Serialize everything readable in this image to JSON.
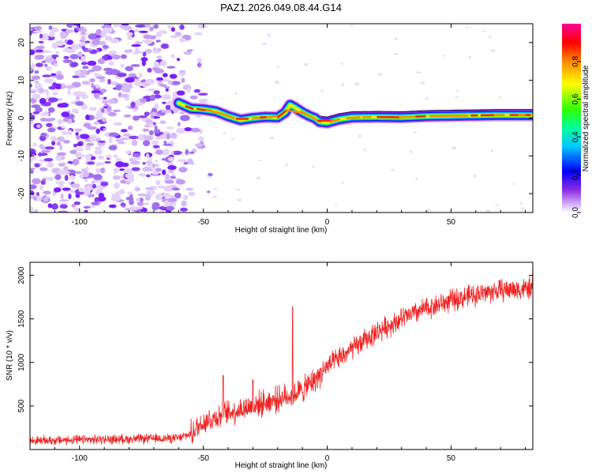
{
  "title": "PAZ1.2026.049.08.44.G14",
  "chart_data": [
    {
      "type": "heatmap",
      "name": "spectrogram",
      "xlabel": "Height of straight line (km)",
      "ylabel": "Frequency (Hz)",
      "xlim": [
        -120,
        83
      ],
      "ylim": [
        -25,
        25
      ],
      "xticks": [
        -100,
        -50,
        0,
        50
      ],
      "yticks": [
        -20,
        -10,
        0,
        10,
        20
      ],
      "colorbar": {
        "label": "Normalized spectral amplitude",
        "range": [
          0,
          1
        ],
        "ticks": [
          0.0,
          0.2,
          0.4,
          0.6,
          0.8
        ],
        "tick_labels": [
          "0.0",
          "0.2",
          "0.4",
          "0.6",
          "0.8"
        ],
        "colors": [
          "#ffffff",
          "#c9a6f5",
          "#7f00ff",
          "#0000ff",
          "#00c8ff",
          "#00ff80",
          "#80ff00",
          "#ffff00",
          "#ff8000",
          "#ff0000",
          "#ff00a0"
        ]
      },
      "noise_region_x": [
        -120,
        -55
      ],
      "ridge": {
        "x": [
          -60,
          -55,
          -50,
          -45,
          -40,
          -35,
          -30,
          -25,
          -20,
          -17,
          -15,
          -13,
          -10,
          -7,
          -5,
          -3,
          0,
          5,
          10,
          20,
          30,
          40,
          50,
          60,
          70,
          83
        ],
        "y": [
          4,
          2.5,
          2.3,
          1.8,
          0.5,
          -0.5,
          0,
          0.3,
          0.2,
          1.5,
          3.5,
          2.8,
          1.5,
          0.5,
          0,
          -1,
          -1.2,
          -0.3,
          0.2,
          0.3,
          0.2,
          0.5,
          0.6,
          0.7,
          0.8,
          0.8
        ]
      }
    },
    {
      "type": "line",
      "name": "snr",
      "xlabel": "Height of straight line (km)",
      "ylabel": "SNR (10 * v/v)",
      "xlim": [
        -120,
        83
      ],
      "ylim": [
        0,
        2150
      ],
      "xticks": [
        -100,
        -50,
        0,
        50
      ],
      "yticks": [
        500,
        1000,
        1500,
        2000
      ],
      "color": "#ee2222",
      "trend": {
        "x": [
          -120,
          -100,
          -80,
          -60,
          -55,
          -50,
          -40,
          -30,
          -20,
          -15,
          -10,
          -5,
          0,
          10,
          20,
          30,
          40,
          50,
          60,
          70,
          83
        ],
        "y": [
          100,
          110,
          120,
          130,
          180,
          320,
          420,
          500,
          580,
          620,
          680,
          800,
          950,
          1150,
          1350,
          1500,
          1620,
          1710,
          1780,
          1830,
          1850
        ]
      },
      "spikes": [
        {
          "x": -42,
          "y": 850
        },
        {
          "x": -30,
          "y": 800
        },
        {
          "x": -14,
          "y": 1640
        },
        {
          "x": 83,
          "y": 2050
        }
      ]
    }
  ]
}
